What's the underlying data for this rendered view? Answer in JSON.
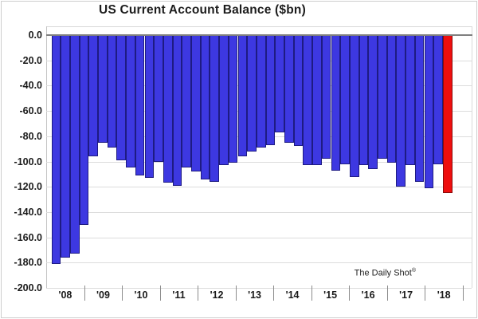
{
  "chart_data": {
    "type": "bar",
    "title": "US Current Account Balance ($bn)",
    "ylabel": "",
    "xlabel": "",
    "ylim": [
      -200,
      0
    ],
    "ytick_step": 20,
    "ytick_labels": [
      "0.0",
      "-20.0",
      "-40.0",
      "-60.0",
      "-80.0",
      "-100.0",
      "-120.0",
      "-140.0",
      "-160.0",
      "-180.0",
      "-200.0"
    ],
    "year_labels": [
      "'08",
      "'09",
      "'10",
      "'11",
      "'12",
      "'13",
      "'14",
      "'15",
      "'16",
      "'17",
      "'18"
    ],
    "categories": [
      "2008 Q1",
      "2008 Q2",
      "2008 Q3",
      "2008 Q4",
      "2009 Q1",
      "2009 Q2",
      "2009 Q3",
      "2009 Q4",
      "2010 Q1",
      "2010 Q2",
      "2010 Q3",
      "2010 Q4",
      "2011 Q1",
      "2011 Q2",
      "2011 Q3",
      "2011 Q4",
      "2012 Q1",
      "2012 Q2",
      "2012 Q3",
      "2012 Q4",
      "2013 Q1",
      "2013 Q2",
      "2013 Q3",
      "2013 Q4",
      "2014 Q1",
      "2014 Q2",
      "2014 Q3",
      "2014 Q4",
      "2015 Q1",
      "2015 Q2",
      "2015 Q3",
      "2015 Q4",
      "2016 Q1",
      "2016 Q2",
      "2016 Q3",
      "2016 Q4",
      "2017 Q1",
      "2017 Q2",
      "2017 Q3",
      "2017 Q4",
      "2018 Q1",
      "2018 Q2",
      "2018 Q3"
    ],
    "values": [
      -181,
      -176,
      -173,
      -150,
      -96,
      -85,
      -89,
      -99,
      -105,
      -111,
      -113,
      -100,
      -117,
      -119,
      -105,
      -108,
      -114,
      -116,
      -103,
      -101,
      -96,
      -92,
      -89,
      -87,
      -77,
      -85,
      -88,
      -103,
      -103,
      -98,
      -107,
      -102,
      -112,
      -103,
      -106,
      -98,
      -101,
      -120,
      -103,
      -116,
      -121,
      -102,
      -125
    ],
    "highlight_index": 42,
    "bar_color": "#3d38e1",
    "bar_border_color": "#1e1b82",
    "highlight_color": "#ee0e0e",
    "highlight_border_color": "#8a0b0b",
    "grid_on": true,
    "legend": "none",
    "watermark_text": "The Daily Shot",
    "watermark_mark": "®"
  }
}
